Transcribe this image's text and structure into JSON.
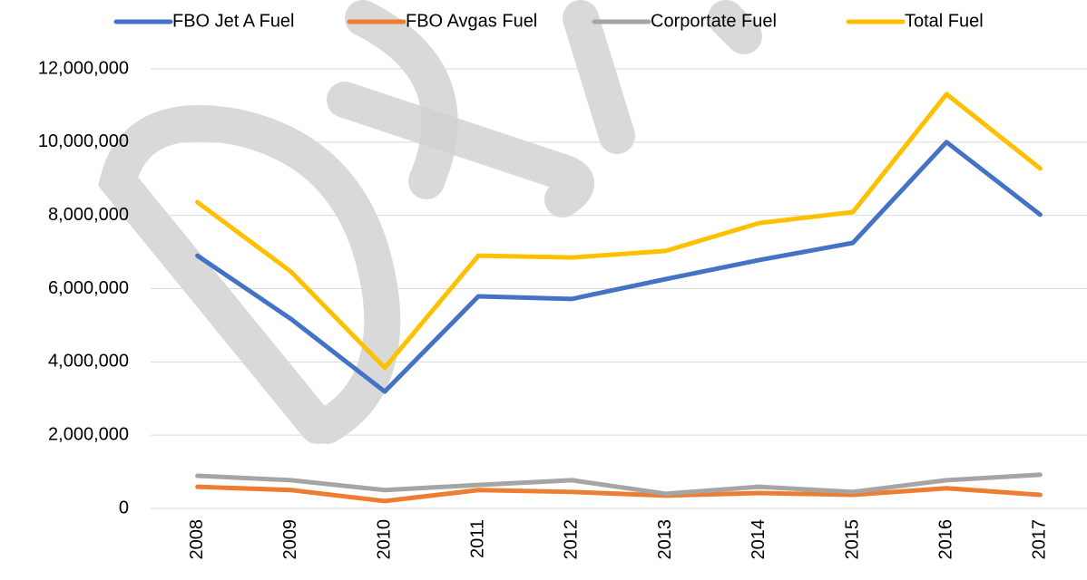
{
  "chart_data": {
    "type": "line",
    "categories": [
      "2008",
      "2009",
      "2010",
      "2011",
      "2012",
      "2013",
      "2014",
      "2015",
      "2016",
      "2017"
    ],
    "series": [
      {
        "name": "FBO Jet A Fuel",
        "color": "#4472c4",
        "values": [
          6900000,
          5170000,
          3190000,
          5790000,
          5720000,
          6260000,
          6780000,
          7250000,
          10000000,
          8020000
        ]
      },
      {
        "name": "FBO Avgas Fuel",
        "color": "#ed7d31",
        "values": [
          590000,
          500000,
          200000,
          500000,
          450000,
          350000,
          420000,
          370000,
          550000,
          370000
        ]
      },
      {
        "name": "Corportate Fuel",
        "color": "#a5a5a5",
        "values": [
          890000,
          770000,
          500000,
          640000,
          770000,
          400000,
          590000,
          450000,
          770000,
          920000
        ]
      },
      {
        "name": "Total Fuel",
        "color": "#ffc000",
        "values": [
          8360000,
          6460000,
          3840000,
          6900000,
          6850000,
          7030000,
          7790000,
          8090000,
          11310000,
          9280000
        ]
      }
    ],
    "ylim": [
      0,
      12000000
    ],
    "yticks": [
      0,
      {
        "value": 2000000,
        "label": "2,000,000"
      },
      {
        "value": 4000000,
        "label": "4,000,000"
      },
      {
        "value": 6000000,
        "label": "6,000,000"
      },
      {
        "value": 8000000,
        "label": "8,000,000"
      },
      {
        "value": 10000000,
        "label": "10,000,000"
      },
      {
        "value": 12000000,
        "label": "12,000,000"
      }
    ],
    "grid": true,
    "legend": "top"
  }
}
